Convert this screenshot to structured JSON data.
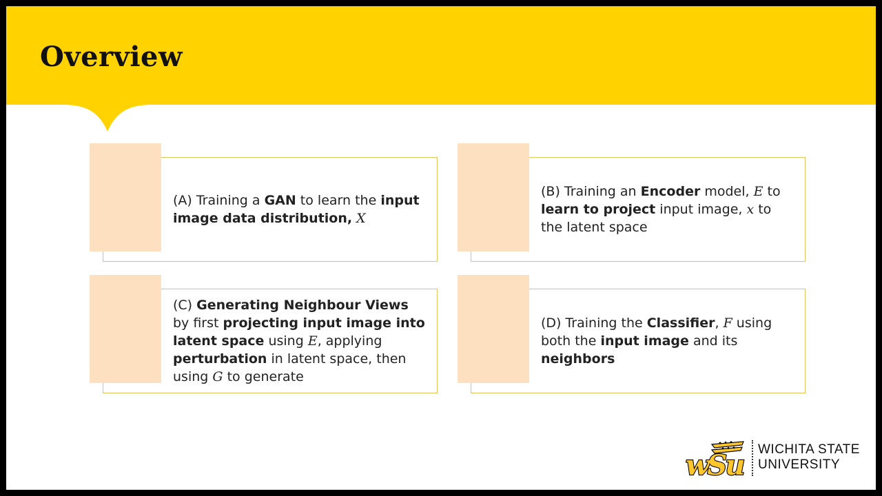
{
  "slide": {
    "title": "Overview",
    "colors": {
      "header": "#ffd200",
      "card_swatch": "#fde0c0",
      "card_border": "#e8c25a",
      "background": "#ffffff"
    }
  },
  "cards": [
    {
      "id": "A",
      "segments": [
        {
          "text": "(A) Training a ",
          "style": "normal"
        },
        {
          "text": "GAN",
          "style": "bold"
        },
        {
          "text": " to learn the ",
          "style": "normal"
        },
        {
          "text": "input image data distribution,",
          "style": "bold"
        },
        {
          "text": " ",
          "style": "normal"
        },
        {
          "text": "X",
          "style": "math"
        }
      ]
    },
    {
      "id": "B",
      "segments": [
        {
          "text": "(B) Training an ",
          "style": "normal"
        },
        {
          "text": "Encoder",
          "style": "bold"
        },
        {
          "text": " model, ",
          "style": "normal"
        },
        {
          "text": "E",
          "style": "math"
        },
        {
          "text": " to ",
          "style": "normal"
        },
        {
          "text": "learn to project",
          "style": "bold"
        },
        {
          "text": " input image, ",
          "style": "normal"
        },
        {
          "text": "x",
          "style": "math"
        },
        {
          "text": " to the latent space",
          "style": "normal"
        }
      ]
    },
    {
      "id": "C",
      "segments": [
        {
          "text": "(C) ",
          "style": "normal"
        },
        {
          "text": "Generating Neighbour Views",
          "style": "bold"
        },
        {
          "text": " by first ",
          "style": "normal"
        },
        {
          "text": "projecting input image into latent space",
          "style": "bold"
        },
        {
          "text": " using ",
          "style": "normal"
        },
        {
          "text": "E",
          "style": "math"
        },
        {
          "text": ", applying ",
          "style": "normal"
        },
        {
          "text": "perturbation",
          "style": "bold"
        },
        {
          "text": " in latent space, then using ",
          "style": "normal"
        },
        {
          "text": "G",
          "style": "math"
        },
        {
          "text": " to generate",
          "style": "normal"
        }
      ]
    },
    {
      "id": "D",
      "segments": [
        {
          "text": "(D) Training the ",
          "style": "normal"
        },
        {
          "text": "Classifier",
          "style": "bold"
        },
        {
          "text": ", ",
          "style": "normal"
        },
        {
          "text": "F",
          "style": "math"
        },
        {
          "text": " using both the ",
          "style": "normal"
        },
        {
          "text": "input image",
          "style": "bold"
        },
        {
          "text": " and its ",
          "style": "normal"
        },
        {
          "text": "neighbors",
          "style": "bold"
        }
      ]
    }
  ],
  "logo": {
    "mark_text": "wSu",
    "line1": "WICHITA STATE",
    "line2": "UNIVERSITY",
    "icon": "wheat-shocker-logo"
  }
}
